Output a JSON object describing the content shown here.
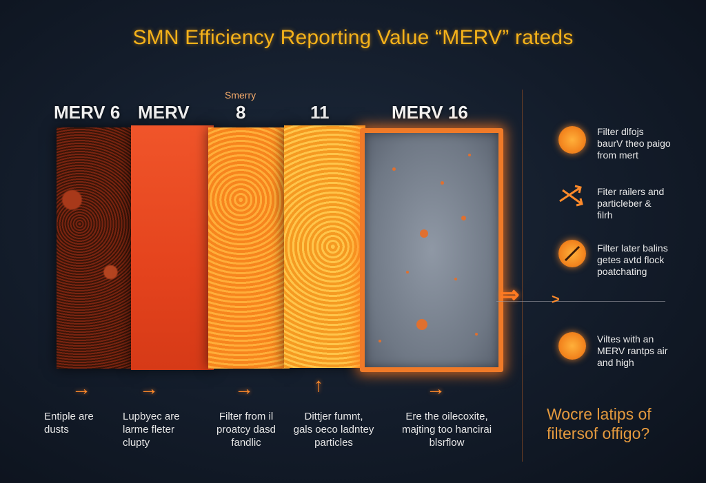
{
  "title": "SMN Efficiency Reporting Value “MERV” rateds",
  "panels": [
    {
      "label": "MERV 6",
      "description": "Entiple are\ndusts"
    },
    {
      "label": "MERV",
      "description": "Lupbyec are\nlarme fleter\nclupty"
    },
    {
      "label": "8",
      "sublabel": "Smerry",
      "description": "Filter from il\nproatcy dasd\nfandlic"
    },
    {
      "label": "11",
      "description": "Dittjer fumnt,\ngals oeco ladntey\nparticles"
    },
    {
      "label": "MERV 16",
      "description": "Ere the oilecoxite,\nmajting too hancirai\nblsrflow"
    }
  ],
  "side_notes": [
    {
      "text": "Filter dlfojs\nbaurV theo paigo\nfrom mert",
      "icon": "orange-disc-icon"
    },
    {
      "text": "Fiter railers and\nparticleber &\nfilrh",
      "icon": "crossed-arrows-icon"
    },
    {
      "text": "Filter later balins\ngetes avtd flock\npoatchating",
      "icon": "no-entry-disc-icon"
    },
    {
      "text": "Viltes with an\nMERV rantps air\nand high",
      "icon": "orange-disc-icon"
    }
  ],
  "question": "Wocre latips of\nfiltersof offigo?",
  "colors": {
    "title": "#f5b21a",
    "accent": "#f07a28",
    "background": "#131c2a"
  }
}
